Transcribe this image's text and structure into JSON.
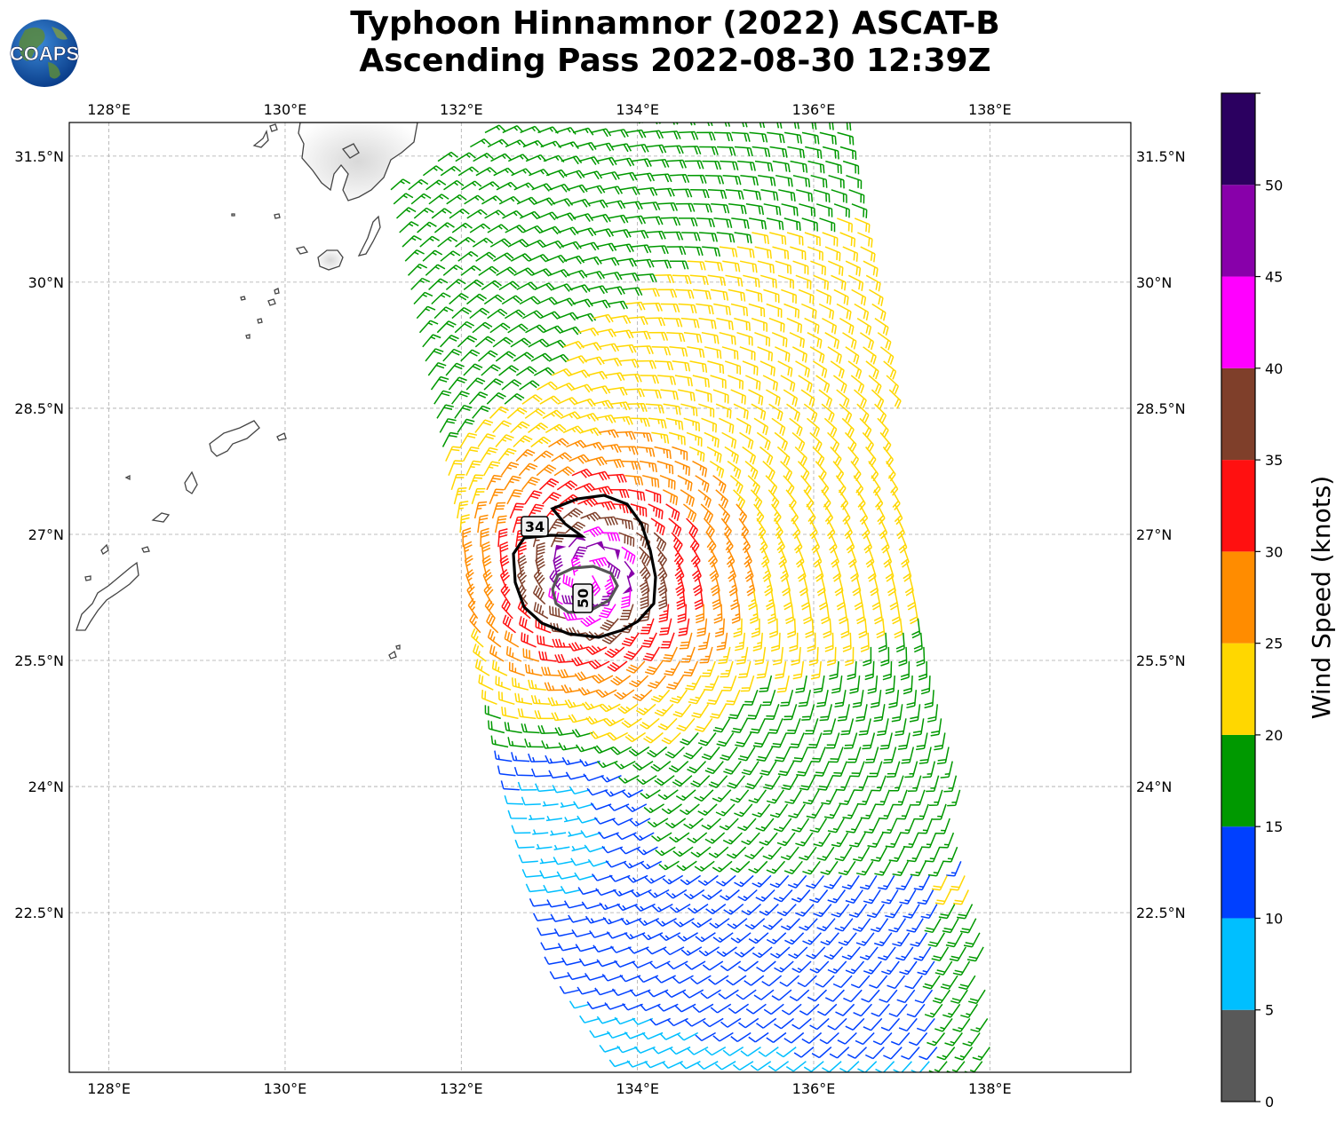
{
  "title": {
    "line1": "Typhoon Hinnamnor (2022) ASCAT-B",
    "line2": "Ascending Pass 2022-08-30 12:39Z"
  },
  "logo": {
    "text": "COAPS",
    "icon": "globe-logo-icon"
  },
  "map": {
    "lon_range": [
      127.55,
      139.6
    ],
    "lat_range": [
      20.6,
      31.9
    ],
    "lon_ticks": [
      {
        "value": 128,
        "label": "128°E"
      },
      {
        "value": 130,
        "label": "130°E"
      },
      {
        "value": 132,
        "label": "132°E"
      },
      {
        "value": 134,
        "label": "134°E"
      },
      {
        "value": 136,
        "label": "136°E"
      },
      {
        "value": 138,
        "label": "138°E"
      }
    ],
    "lat_ticks": [
      {
        "value": 31.5,
        "label": "31.5°N"
      },
      {
        "value": 30,
        "label": "30°N"
      },
      {
        "value": 28.5,
        "label": "28.5°N"
      },
      {
        "value": 27,
        "label": "27°N"
      },
      {
        "value": 25.5,
        "label": "25.5°N"
      },
      {
        "value": 24,
        "label": "24°N"
      },
      {
        "value": 22.5,
        "label": "22.5°N"
      }
    ],
    "gridlines": true,
    "storm_center": {
      "lon": 133.45,
      "lat": 26.5
    },
    "contours": [
      {
        "label": "34",
        "value": 34,
        "color": "#000000"
      },
      {
        "label": "50",
        "value": 50,
        "color": "#555555"
      }
    ]
  },
  "colorbar": {
    "label": "Wind Speed (knots)",
    "ticks": [
      "0",
      "5",
      "10",
      "15",
      "20",
      "25",
      "30",
      "35",
      "40",
      "45",
      "50"
    ],
    "bins": [
      {
        "min": 0,
        "max": 5,
        "color": "#595959"
      },
      {
        "min": 5,
        "max": 10,
        "color": "#00bfff"
      },
      {
        "min": 10,
        "max": 15,
        "color": "#0040ff"
      },
      {
        "min": 15,
        "max": 20,
        "color": "#009900"
      },
      {
        "min": 20,
        "max": 25,
        "color": "#ffd700"
      },
      {
        "min": 25,
        "max": 30,
        "color": "#ff8c00"
      },
      {
        "min": 30,
        "max": 35,
        "color": "#ff1010"
      },
      {
        "min": 35,
        "max": 40,
        "color": "#7f3f2a"
      },
      {
        "min": 40,
        "max": 45,
        "color": "#ff00ff"
      },
      {
        "min": 45,
        "max": 50,
        "color": "#8800aa"
      },
      {
        "min": 50,
        "max": 55,
        "color": "#2b0060"
      }
    ]
  }
}
